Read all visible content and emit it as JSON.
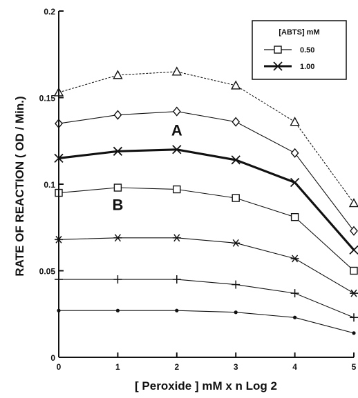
{
  "chart_data": {
    "type": "line",
    "xlabel": "[ Peroxide ] mM x n Log 2",
    "ylabel": "RATE OF REACTION ( OD / Min.)",
    "x": [
      0,
      1,
      2,
      3,
      4,
      5
    ],
    "xlim": [
      0,
      5
    ],
    "ylim": [
      0,
      0.2
    ],
    "x_ticks": [
      "0",
      "1",
      "2",
      "3",
      "4",
      "5"
    ],
    "y_ticks": [
      {
        "value": 0,
        "label": "0"
      },
      {
        "value": 0.05,
        "label": "0.05"
      },
      {
        "value": 0.1,
        "label": "0.1"
      },
      {
        "value": 0.15,
        "label": "0.15"
      },
      {
        "value": 0.2,
        "label": "0.2"
      }
    ],
    "legend": {
      "title": "[ABTS] mM",
      "position": "top-right",
      "entries": [
        {
          "label": "0.50",
          "marker": "square"
        },
        {
          "label": "1.00",
          "marker": "x"
        }
      ]
    },
    "annotations": [
      {
        "text": "A",
        "x": 2,
        "y": 0.128
      },
      {
        "text": "B",
        "x": 1,
        "y": 0.085
      }
    ],
    "series": [
      {
        "marker": "triangle",
        "style": "thin-dashed",
        "values": [
          0.153,
          0.163,
          0.165,
          0.157,
          0.136,
          0.089
        ]
      },
      {
        "marker": "diamond",
        "style": "thin",
        "values": [
          0.135,
          0.14,
          0.142,
          0.136,
          0.118,
          0.073
        ]
      },
      {
        "marker": "x",
        "style": "thick",
        "values": [
          0.115,
          0.119,
          0.12,
          0.114,
          0.101,
          0.062
        ]
      },
      {
        "marker": "square",
        "style": "thin",
        "values": [
          0.095,
          0.098,
          0.097,
          0.092,
          0.081,
          0.05
        ]
      },
      {
        "marker": "asterisk",
        "style": "thin",
        "values": [
          0.068,
          0.069,
          0.069,
          0.066,
          0.057,
          0.037
        ]
      },
      {
        "marker": "plus",
        "style": "thin",
        "values": [
          0.045,
          0.045,
          0.045,
          0.042,
          0.037,
          0.023
        ]
      },
      {
        "marker": "dot",
        "style": "thin",
        "values": [
          0.027,
          0.027,
          0.027,
          0.026,
          0.023,
          0.014
        ]
      }
    ]
  }
}
